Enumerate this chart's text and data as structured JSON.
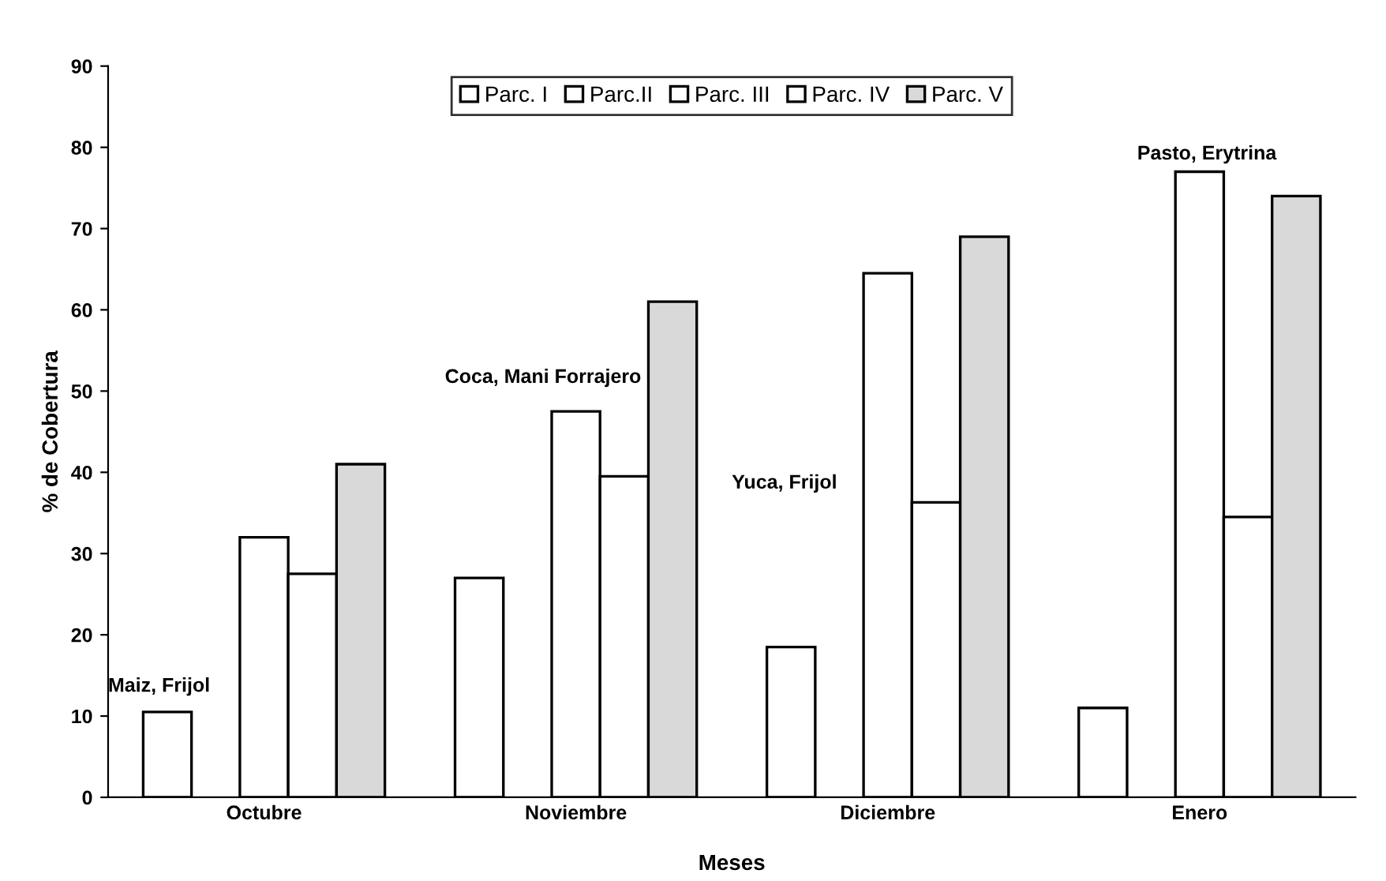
{
  "chart_data": {
    "type": "bar",
    "xlabel": "Meses",
    "ylabel": "% de Cobertura",
    "categories": [
      "Octubre",
      "Noviembre",
      "Diciembre",
      "Enero"
    ],
    "series": [
      {
        "name": "Parc. I",
        "color": "#ffffff",
        "values": [
          10.5,
          27,
          18.5,
          11
        ]
      },
      {
        "name": "Parc.II",
        "color": "#ffffff",
        "values": [
          null,
          null,
          null,
          null
        ]
      },
      {
        "name": "Parc. III",
        "color": "#ffffff",
        "values": [
          32,
          47.5,
          64.5,
          77
        ]
      },
      {
        "name": "Parc. IV",
        "color": "#ffffff",
        "values": [
          27.5,
          39.5,
          36.3,
          34.5
        ]
      },
      {
        "name": "Parc. V",
        "color": "#d9d9d9",
        "values": [
          41,
          61,
          69,
          74
        ]
      }
    ],
    "ylim": [
      0,
      90
    ],
    "yticks": [
      0,
      10,
      20,
      30,
      40,
      50,
      60,
      70,
      80,
      90
    ],
    "annotations": [
      "Maiz, Frijol",
      "Coca, Mani Forrajero",
      "Yuca, Frijol",
      "Pasto, Erytrina"
    ],
    "legend": "top",
    "grid": false
  }
}
